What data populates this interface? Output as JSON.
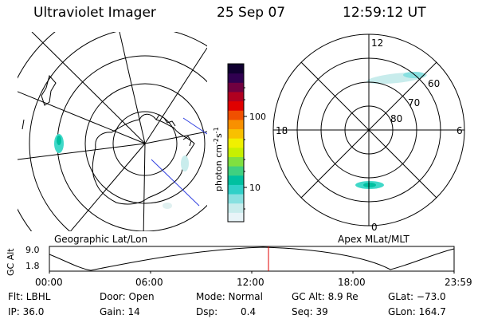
{
  "header": {
    "title": "Ultraviolet Imager",
    "date": "25 Sep 07",
    "time": "12:59:12 UT"
  },
  "left_panel": {
    "caption": "Geographic Lat/Lon"
  },
  "right_panel": {
    "caption": "Apex MLat/MLT",
    "mlt_labels": {
      "top": "12",
      "bottom": "0",
      "left": "18",
      "right": "6"
    },
    "lat_labels": [
      "60",
      "70",
      "80"
    ]
  },
  "colorbar": {
    "unit_label": "photon cm",
    "unit_sup1": "-2",
    "unit_mid": "s",
    "unit_sup2": "-1",
    "tick_labels": [
      "100",
      "10"
    ],
    "colors": [
      "#e8f4f8",
      "#c8ecec",
      "#88e0e0",
      "#30d0c8",
      "#00c0a0",
      "#40d080",
      "#80e040",
      "#c8f000",
      "#f0f000",
      "#f8c000",
      "#f89000",
      "#f05000",
      "#e00000",
      "#b00020",
      "#700040",
      "#300050",
      "#100030"
    ]
  },
  "altitude_strip": {
    "axis_label": "GC Alt",
    "y_max": "9.0",
    "y_min": "1.8",
    "time_labels": [
      "00:00",
      "06:00",
      "12:00",
      "18:00",
      "23:59"
    ],
    "marker_color": "#e00000"
  },
  "info": {
    "flt": "Flt: LBHL",
    "door": "Door: Open",
    "mode": "Mode: Normal",
    "gc_alt": "GC Alt: 8.9 Re",
    "glat": "GLat: −73.0",
    "ip": "IP: 36.0",
    "gain": "Gain: 14",
    "dsp_label": "Dsp:",
    "dsp_value": "0.4",
    "seq": "Seq: 39",
    "glon": "GLon: 164.7"
  }
}
